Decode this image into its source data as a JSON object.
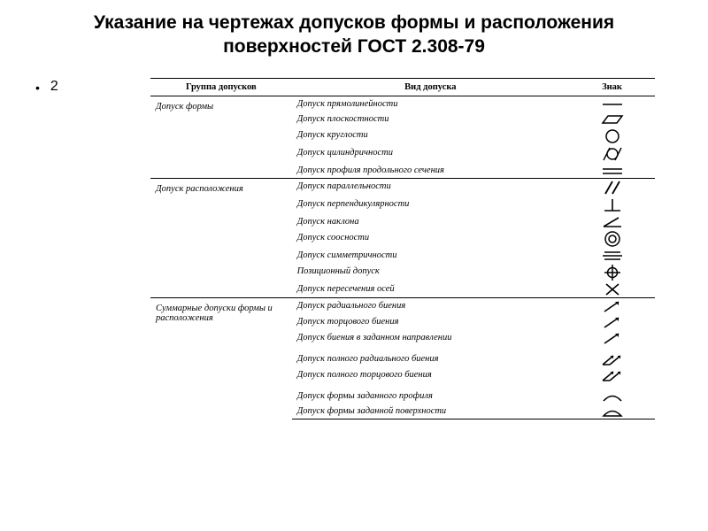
{
  "title": "Указание на чертежах допусков формы и расположения поверхностей ГОСТ 2.308-79",
  "bullet": "2",
  "headers": {
    "group": "Группа допусков",
    "type": "Вид допуска",
    "sign": "Знак"
  },
  "groups": [
    {
      "name": "Допуск формы",
      "rows": [
        {
          "label": "Допуск прямолинейности",
          "icon": "straightness"
        },
        {
          "label": "Допуск плоскостности",
          "icon": "flatness"
        },
        {
          "label": "Допуск круглости",
          "icon": "roundness"
        },
        {
          "label": "Допуск цилиндричности",
          "icon": "cylindricity"
        },
        {
          "label": "Допуск профиля продольного сечения",
          "icon": "profile-long"
        }
      ]
    },
    {
      "name": "Допуск расположения",
      "rows": [
        {
          "label": "Допуск параллельности",
          "icon": "parallelism"
        },
        {
          "label": "Допуск перпендикулярности",
          "icon": "perpendicularity"
        },
        {
          "label": "Допуск наклона",
          "icon": "angularity"
        },
        {
          "label": "Допуск соосности",
          "icon": "concentricity"
        },
        {
          "label": "Допуск симметричности",
          "icon": "symmetry"
        },
        {
          "label": "Позиционный допуск",
          "icon": "position"
        },
        {
          "label": "Допуск пересечения осей",
          "icon": "axis-cross"
        }
      ]
    },
    {
      "name": "Суммарные допуски формы и расположения",
      "rows": [
        {
          "label": "Допуск радиального биения",
          "icon": "runout"
        },
        {
          "label": "Допуск торцового биения",
          "icon": "runout"
        },
        {
          "label": "Допуск биения в заданном направлении",
          "icon": "runout"
        },
        {
          "label": "",
          "icon": "spacer"
        },
        {
          "label": "Допуск полного радиального биения",
          "icon": "total-runout"
        },
        {
          "label": "Допуск полного торцового биения",
          "icon": "total-runout"
        },
        {
          "label": "",
          "icon": "spacer"
        },
        {
          "label": "Допуск формы заданного профиля",
          "icon": "profile-line"
        },
        {
          "label": "Допуск формы заданной поверхности",
          "icon": "profile-surface"
        }
      ]
    }
  ]
}
